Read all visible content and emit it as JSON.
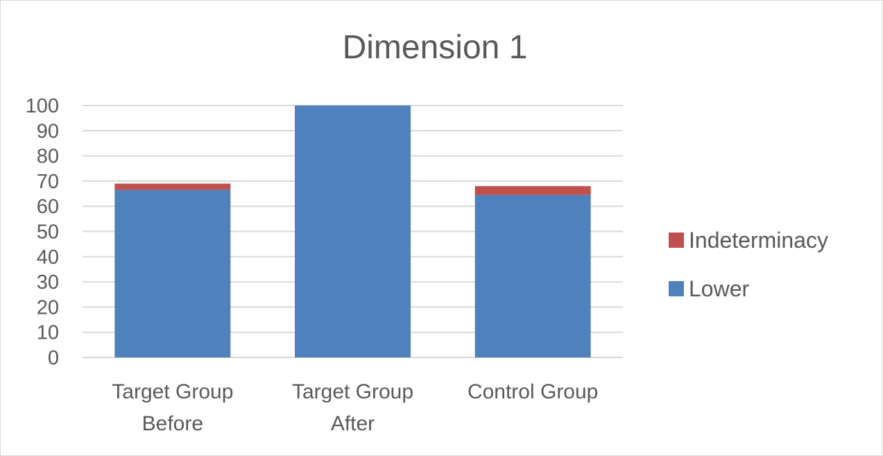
{
  "chart_data": {
    "type": "bar",
    "stacked": true,
    "title": "Dimension 1",
    "xlabel": "",
    "ylabel": "",
    "ylim": [
      0,
      100
    ],
    "yticks": [
      0,
      10,
      20,
      30,
      40,
      50,
      60,
      70,
      80,
      90,
      100
    ],
    "categories": [
      [
        "Target Group",
        "Before"
      ],
      [
        "Target Group",
        "After"
      ],
      [
        "Control Group"
      ]
    ],
    "series": [
      {
        "name": "Lower",
        "color": "#4f81bd",
        "values": [
          66.5,
          100,
          64.5
        ]
      },
      {
        "name": "Indeterminacy",
        "color": "#c0504d",
        "values": [
          2.5,
          0,
          3.5
        ]
      }
    ],
    "legend": {
      "position": "right",
      "order": [
        "Indeterminacy",
        "Lower"
      ]
    },
    "grid": true
  }
}
